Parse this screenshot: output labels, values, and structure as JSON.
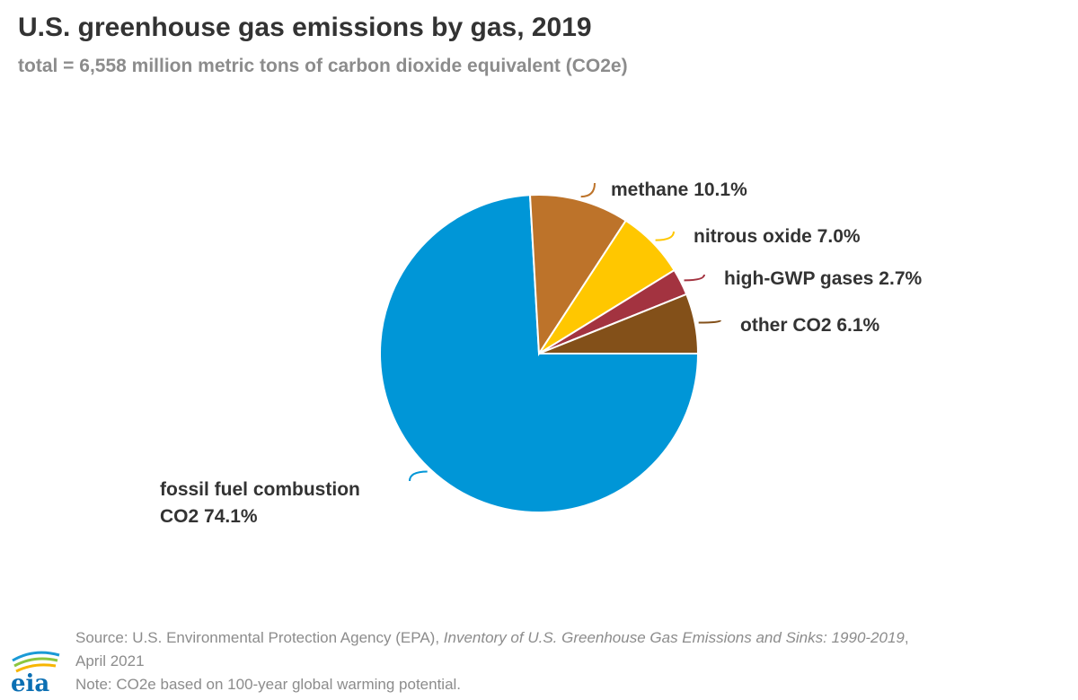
{
  "title": "U.S. greenhouse gas emissions by gas, 2019",
  "subtitle": "total = 6,558 million metric tons of carbon dioxide equivalent (CO2e)",
  "chart_data": {
    "type": "pie",
    "title": "U.S. greenhouse gas emissions by gas, 2019",
    "subtitle": "total = 6,558 million metric tons of carbon dioxide equivalent (CO2e)",
    "slices": [
      {
        "label": "fossil fuel combustion CO2",
        "value": 74.1,
        "label_text": "fossil fuel combustion",
        "label_text2": "CO2 74.1%",
        "color": "#0096D7"
      },
      {
        "label": "methane",
        "value": 10.1,
        "label_text": "methane 10.1%",
        "color": "#BD732A"
      },
      {
        "label": "nitrous oxide",
        "value": 7.0,
        "label_text": "nitrous oxide 7.0%",
        "color": "#FFC700"
      },
      {
        "label": "high-GWP gases",
        "value": 2.7,
        "label_text": "high-GWP gases 2.7%",
        "color": "#A33340"
      },
      {
        "label": "other CO2",
        "value": 6.1,
        "label_text": "other CO2 6.1%",
        "color": "#835019"
      }
    ],
    "unit": "%"
  },
  "footer": {
    "source_prefix": "Source: U.S. Environmental Protection Agency (EPA), ",
    "source_title": "Inventory of U.S. Greenhouse Gas Emissions and Sinks: 1990-2019",
    "source_suffix": ",",
    "source_date": "April 2021",
    "note": "Note: CO2e based on 100-year global warming potential."
  },
  "logo": {
    "text": "eia",
    "icon": "eia-logo-icon"
  }
}
